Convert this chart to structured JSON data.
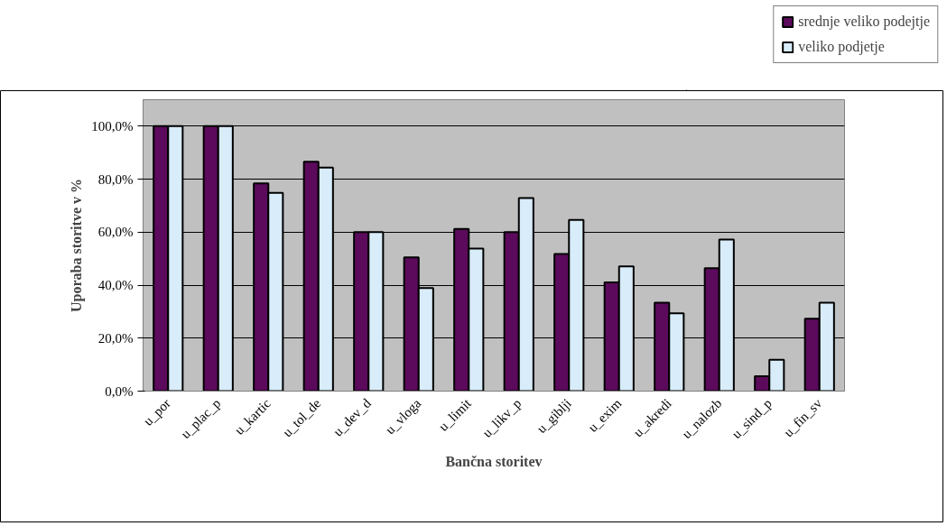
{
  "chart_data": {
    "type": "bar",
    "xlabel": "Bančna storitev",
    "ylabel": "Uporaba storitve v %",
    "categories": [
      "u_por",
      "u_plac_p",
      "u_kartic",
      "u_tol_de",
      "u_dev_d",
      "u_vloga",
      "u_limit",
      "u_likv_p",
      "u_giblji",
      "u_exim",
      "u_akredi",
      "u_nalozb",
      "u_sind_p",
      "u_fin_sv"
    ],
    "series": [
      {
        "name": "srednje veliko podejtje",
        "color": "#5c0a5c",
        "values": [
          100,
          100,
          78.4,
          86.6,
          60,
          50.5,
          61.2,
          60,
          51.8,
          41,
          33.4,
          46.4,
          5.6,
          27.3
        ]
      },
      {
        "name": "veliko podjetje",
        "color": "#d8ecfa",
        "values": [
          100,
          100,
          74.8,
          84.4,
          60,
          38.9,
          53.8,
          72.9,
          64.6,
          47.1,
          29.4,
          57.2,
          11.8,
          33.4
        ]
      }
    ],
    "ylim": [
      0,
      110
    ],
    "yticks": [
      {
        "value": 0,
        "label": "0,0%"
      },
      {
        "value": 20,
        "label": "20,0%"
      },
      {
        "value": 40,
        "label": "40,0%"
      },
      {
        "value": 60,
        "label": "60,0%"
      },
      {
        "value": 80,
        "label": "80,0%"
      },
      {
        "value": 100,
        "label": "100,0%"
      }
    ],
    "grid": "y",
    "legend": "top right"
  }
}
